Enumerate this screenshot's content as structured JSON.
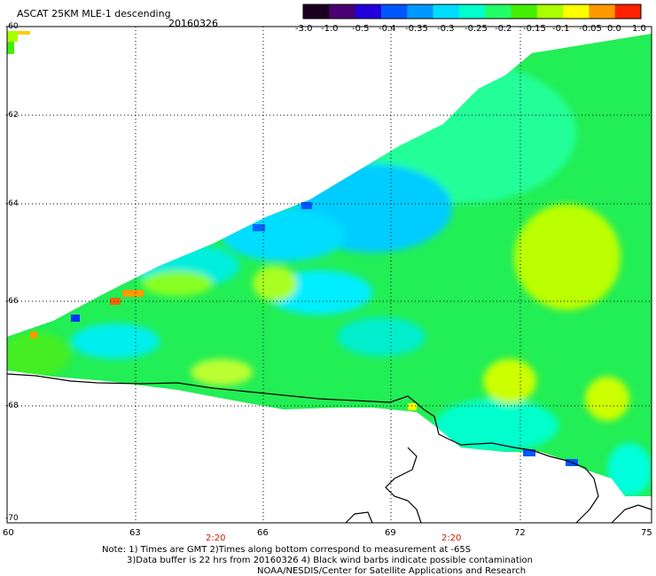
{
  "title": "ASCAT 25KM MLE-1 descending",
  "date": "20160326",
  "colorbar": {
    "labels": [
      "-3.0",
      "-1.0",
      "-0.5",
      "-0.4",
      "-0.35",
      "-0.3",
      "-0.25",
      "-0.2",
      "-0.15",
      "-0.1",
      "-0.05",
      "0.0",
      "1.0"
    ],
    "colors": [
      "#1a0020",
      "#4a0070",
      "#2200dd",
      "#0055ff",
      "#0099ff",
      "#00ddff",
      "#00ffcc",
      "#22ff66",
      "#44ee00",
      "#aaff00",
      "#ffff00",
      "#ff9900",
      "#ff2200"
    ]
  },
  "axes": {
    "lat_labels": [
      "-60",
      "-62",
      "-64",
      "-66",
      "-68",
      "-70"
    ],
    "lon_labels": [
      "60",
      "63",
      "66",
      "69",
      "72",
      "75"
    ],
    "times": [
      "2:20",
      "2:20"
    ]
  },
  "notes": [
    "Note: 1) Times are GMT 2)Times along bottom correspond to measurement at -65S",
    "3)Data buffer is 22 hrs from 20160326 4) Black wind barbs indicate possible contamination",
    "NOAA/NESDIS/Center for Satellite Applications and Research"
  ]
}
